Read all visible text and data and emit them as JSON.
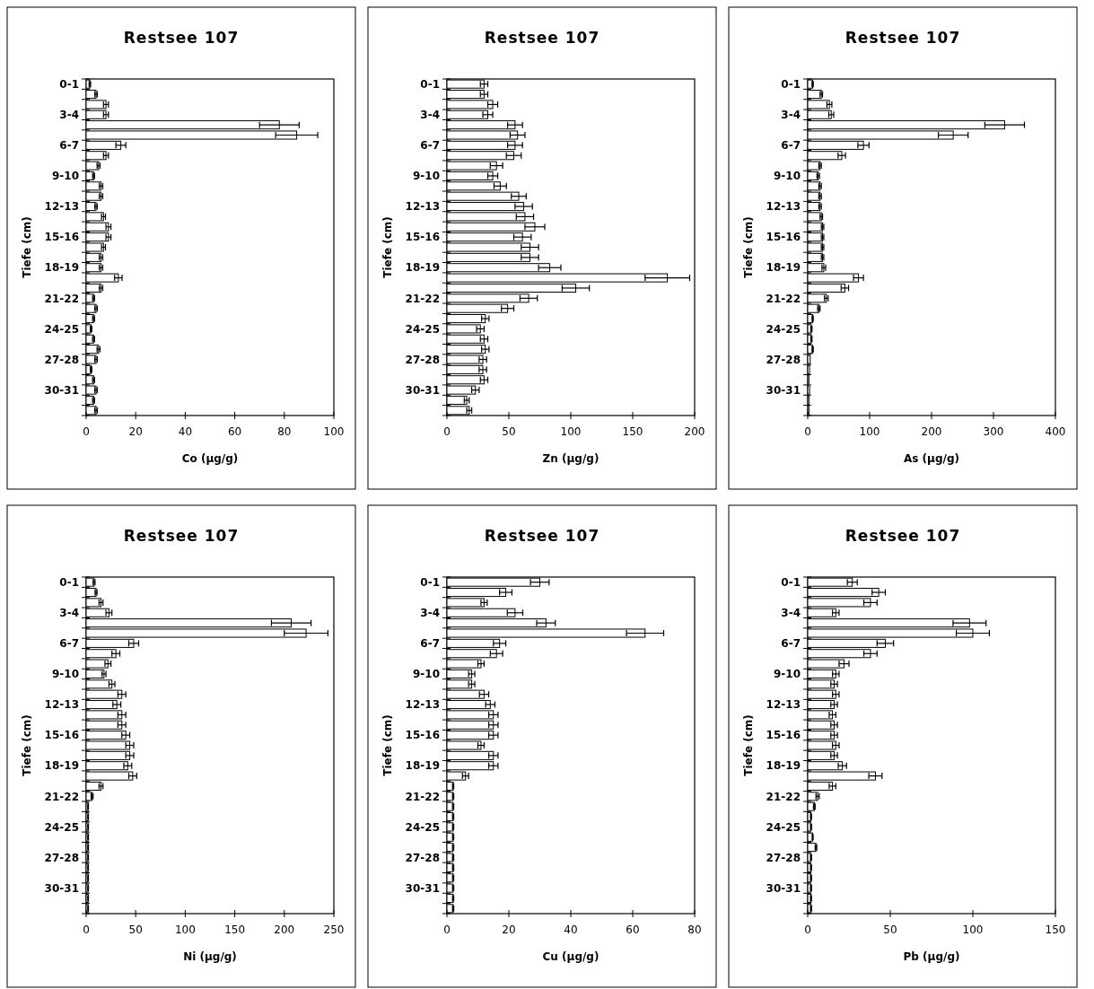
{
  "chart_data": [
    {
      "type": "bar",
      "orientation": "horizontal",
      "title": "Restsee 107",
      "xlabel": "Co (µg/g)",
      "ylabel": "Tiefe (cm)",
      "color": "#ffffff",
      "categories": [
        "0-1",
        null,
        null,
        "3-4",
        null,
        null,
        "6-7",
        null,
        null,
        "9-10",
        null,
        null,
        "12-13",
        null,
        null,
        "15-16",
        null,
        null,
        "18-19",
        null,
        null,
        "21-22",
        null,
        null,
        "24-25",
        null,
        null,
        "27-28",
        null,
        null,
        "30-31",
        null,
        null
      ],
      "values": [
        1.5,
        4,
        8,
        8,
        78,
        85,
        14,
        8,
        5,
        3,
        6,
        6,
        4,
        7,
        9,
        9,
        7,
        6,
        6,
        13,
        6,
        3,
        4,
        3,
        2,
        3,
        5,
        4,
        2,
        3,
        4,
        3,
        4
      ],
      "errors": [
        0.3,
        0.5,
        1,
        1,
        8,
        8.5,
        2,
        1,
        0.6,
        0.4,
        0.7,
        0.7,
        0.5,
        0.8,
        1,
        1,
        0.8,
        0.7,
        0.7,
        1.5,
        0.7,
        0.4,
        0.5,
        0.4,
        0.3,
        0.4,
        0.6,
        0.5,
        0.3,
        0.4,
        0.5,
        0.4,
        0.5
      ],
      "xlim": [
        0,
        100
      ],
      "xticks": [
        0,
        20,
        40,
        60,
        80,
        100
      ]
    },
    {
      "type": "bar",
      "orientation": "horizontal",
      "title": "Restsee 107",
      "xlabel": "Zn (µg/g)",
      "ylabel": "Tiefe (cm)",
      "color": "#ffffff",
      "categories": [
        "0-1",
        null,
        null,
        "3-4",
        null,
        null,
        "6-7",
        null,
        null,
        "9-10",
        null,
        null,
        "12-13",
        null,
        null,
        "15-16",
        null,
        null,
        "18-19",
        null,
        null,
        "21-22",
        null,
        null,
        "24-25",
        null,
        null,
        "27-28",
        null,
        null,
        "30-31",
        null,
        null
      ],
      "values": [
        30,
        30,
        37,
        33,
        55,
        57,
        55,
        54,
        40,
        37,
        43,
        58,
        62,
        63,
        71,
        61,
        67,
        67,
        83,
        178,
        104,
        66,
        49,
        31,
        27,
        30,
        31,
        29,
        29,
        30,
        23,
        16,
        18
      ],
      "errors": [
        3,
        3,
        4,
        4,
        6,
        6,
        6,
        6,
        5,
        4,
        5,
        6,
        7,
        7,
        8,
        7,
        7,
        7,
        9,
        18,
        11,
        7,
        5,
        3,
        3,
        3,
        3,
        3,
        3,
        3,
        3,
        2,
        2
      ],
      "xlim": [
        0,
        200
      ],
      "xticks": [
        0,
        50,
        100,
        150,
        200
      ]
    },
    {
      "type": "bar",
      "orientation": "horizontal",
      "title": "Restsee 107",
      "xlabel": "As (µg/g)",
      "ylabel": "Tiefe (cm)",
      "color": "#ffffff",
      "categories": [
        "0-1",
        null,
        null,
        "3-4",
        null,
        null,
        "6-7",
        null,
        null,
        "9-10",
        null,
        null,
        "12-13",
        null,
        null,
        "15-16",
        null,
        null,
        "18-19",
        null,
        null,
        "21-22",
        null,
        null,
        "24-25",
        null,
        null,
        "27-28",
        null,
        null,
        "30-31",
        null,
        null
      ],
      "values": [
        8,
        22,
        35,
        38,
        318,
        235,
        90,
        55,
        20,
        17,
        20,
        20,
        20,
        22,
        24,
        24,
        24,
        24,
        26,
        82,
        60,
        30,
        18,
        8,
        6,
        6,
        8,
        4,
        3,
        2,
        3,
        2,
        2
      ],
      "errors": [
        1,
        2,
        4,
        4,
        32,
        24,
        9,
        6,
        2,
        2,
        2,
        2,
        2,
        2,
        2,
        2,
        2,
        2,
        3,
        8,
        6,
        3,
        2,
        1,
        1,
        1,
        1,
        null,
        null,
        null,
        null,
        null,
        null
      ],
      "xlim": [
        0,
        400
      ],
      "xticks": [
        0,
        100,
        200,
        300,
        400
      ]
    },
    {
      "type": "bar",
      "orientation": "horizontal",
      "title": "Restsee 107",
      "xlabel": "Ni (µg/g)",
      "ylabel": "Tiefe (cm)",
      "color": "#ffffff",
      "categories": [
        "0-1",
        null,
        null,
        "3-4",
        null,
        null,
        "6-7",
        null,
        null,
        "9-10",
        null,
        null,
        "12-13",
        null,
        null,
        "15-16",
        null,
        null,
        "18-19",
        null,
        null,
        "21-22",
        null,
        null,
        "24-25",
        null,
        null,
        "27-28",
        null,
        null,
        "30-31",
        null,
        null
      ],
      "values": [
        8,
        10,
        15,
        23,
        207,
        222,
        48,
        30,
        22,
        18,
        26,
        36,
        31,
        36,
        36,
        40,
        44,
        44,
        42,
        47,
        15,
        6,
        2,
        2,
        2,
        2,
        2,
        2,
        2,
        2,
        2,
        2,
        2
      ],
      "errors": [
        1,
        1,
        2,
        3,
        20,
        22,
        5,
        4,
        3,
        2,
        3,
        4,
        4,
        4,
        4,
        4,
        4,
        4,
        4,
        4,
        2,
        1,
        0.3,
        0.3,
        0.3,
        0.3,
        0.3,
        0.3,
        0.3,
        0.3,
        0.3,
        0.3,
        0.3
      ],
      "xlim": [
        0,
        250
      ],
      "xticks": [
        0,
        50,
        100,
        150,
        200,
        250
      ]
    },
    {
      "type": "bar",
      "orientation": "horizontal",
      "title": "Restsee 107",
      "xlabel": "Cu (µg/g)",
      "ylabel": "Tiefe (cm)",
      "color": "#ffffff",
      "categories": [
        "0-1",
        null,
        null,
        "3-4",
        null,
        null,
        "6-7",
        null,
        null,
        "9-10",
        null,
        null,
        "12-13",
        null,
        null,
        "15-16",
        null,
        null,
        "18-19",
        null,
        null,
        "21-22",
        null,
        null,
        "24-25",
        null,
        null,
        "27-28",
        null,
        null,
        "30-31",
        null,
        null
      ],
      "values": [
        30,
        19,
        12,
        22,
        32,
        64,
        17,
        16,
        11,
        8,
        8,
        12,
        14,
        15,
        15,
        15,
        11,
        15,
        15,
        6,
        2,
        2,
        2,
        2,
        2,
        2,
        2,
        2,
        2,
        2,
        2,
        2,
        2
      ],
      "errors": [
        3,
        2,
        1,
        2.5,
        3,
        6,
        2,
        2,
        1,
        1,
        1,
        1.5,
        1.5,
        1.5,
        1.5,
        1.5,
        1,
        1.5,
        1.5,
        1,
        0.2,
        0.2,
        0.2,
        0.2,
        0.2,
        0.2,
        0.2,
        0.2,
        0.2,
        0.2,
        0.2,
        0.2,
        0.2
      ],
      "xlim": [
        0,
        80
      ],
      "xticks": [
        0,
        20,
        40,
        60,
        80
      ]
    },
    {
      "type": "bar",
      "orientation": "horizontal",
      "title": "Restsee 107",
      "xlabel": "Pb (µg/g)",
      "ylabel": "Tiefe (cm)",
      "color": "#ffffff",
      "categories": [
        "0-1",
        null,
        null,
        "3-4",
        null,
        null,
        "6-7",
        null,
        null,
        "9-10",
        null,
        null,
        "12-13",
        null,
        null,
        "15-16",
        null,
        null,
        "18-19",
        null,
        null,
        "21-22",
        null,
        null,
        "24-25",
        null,
        null,
        "27-28",
        null,
        null,
        "30-31",
        null,
        null
      ],
      "values": [
        27,
        43,
        38,
        17,
        98,
        100,
        47,
        38,
        22,
        17,
        16,
        17,
        16,
        15,
        16,
        16,
        17,
        16,
        21,
        41,
        15,
        6,
        4,
        2,
        2,
        3,
        5,
        2,
        2,
        2,
        2,
        2,
        2
      ],
      "errors": [
        3,
        4,
        4,
        2,
        10,
        10,
        5,
        4,
        3,
        2,
        2,
        2,
        2,
        2,
        2,
        2,
        2,
        2,
        2.5,
        4,
        2,
        1,
        0.5,
        0.3,
        0.3,
        0.3,
        0.5,
        0.3,
        0.3,
        0.3,
        0.3,
        0.3,
        0.3
      ],
      "xlim": [
        0,
        150
      ],
      "xticks": [
        0,
        50,
        100,
        150
      ]
    }
  ]
}
